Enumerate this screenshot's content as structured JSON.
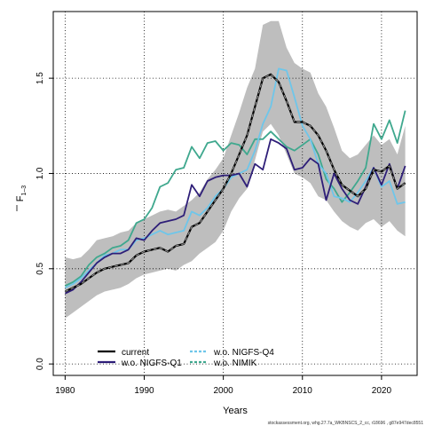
{
  "chart_data": {
    "type": "line",
    "xlabel": "Years",
    "ylabel": "F",
    "ylabel_subscript": "1–3",
    "xlim": [
      1978.5,
      2024.5
    ],
    "ylim": [
      -0.06,
      1.85
    ],
    "xticks": [
      1980,
      1990,
      2000,
      2010,
      2020
    ],
    "yticks": [
      0.0,
      0.5,
      1.0,
      1.5
    ],
    "ytick_labels": [
      "0.0",
      "0.5",
      "1.0",
      "1.5"
    ],
    "grid": true,
    "legend_position": "bottom-left",
    "x": [
      1980,
      1981,
      1982,
      1983,
      1984,
      1985,
      1986,
      1987,
      1988,
      1989,
      1990,
      1991,
      1992,
      1993,
      1994,
      1995,
      1996,
      1997,
      1998,
      1999,
      2000,
      2001,
      2002,
      2003,
      2004,
      2005,
      2006,
      2007,
      2008,
      2009,
      2010,
      2011,
      2012,
      2013,
      2014,
      2015,
      2016,
      2017,
      2018,
      2019,
      2020,
      2021,
      2022,
      2023
    ],
    "confidence_band": {
      "color": "#bebebe",
      "lower": [
        0.24,
        0.27,
        0.3,
        0.33,
        0.36,
        0.38,
        0.39,
        0.4,
        0.42,
        0.45,
        0.47,
        0.48,
        0.49,
        0.5,
        0.49,
        0.52,
        0.54,
        0.58,
        0.61,
        0.64,
        0.7,
        0.8,
        0.87,
        0.92,
        1.07,
        1.22,
        1.26,
        1.2,
        1.1,
        1.0,
        0.98,
        0.95,
        0.88,
        0.86,
        0.8,
        0.75,
        0.72,
        0.7,
        0.74,
        0.76,
        0.72,
        0.75,
        0.7,
        0.67
      ],
      "upper": [
        0.56,
        0.55,
        0.56,
        0.6,
        0.65,
        0.66,
        0.67,
        0.69,
        0.7,
        0.74,
        0.76,
        0.78,
        0.8,
        0.81,
        0.8,
        0.83,
        0.86,
        0.9,
        0.97,
        1.02,
        1.08,
        1.2,
        1.32,
        1.45,
        1.55,
        1.78,
        1.8,
        1.8,
        1.66,
        1.58,
        1.55,
        1.53,
        1.42,
        1.35,
        1.24,
        1.12,
        1.08,
        1.1,
        1.15,
        1.2,
        1.15,
        1.18,
        1.1,
        1.25
      ]
    },
    "series": [
      {
        "name": "current",
        "color": "#000000",
        "dash": "solid",
        "width": 2.2,
        "values": [
          0.38,
          0.4,
          0.42,
          0.45,
          0.48,
          0.5,
          0.51,
          0.52,
          0.53,
          0.57,
          0.59,
          0.6,
          0.61,
          0.59,
          0.62,
          0.63,
          0.72,
          0.74,
          0.8,
          0.86,
          0.92,
          1.0,
          1.1,
          1.2,
          1.35,
          1.5,
          1.52,
          1.48,
          1.38,
          1.27,
          1.27,
          1.25,
          1.2,
          1.12,
          1.02,
          0.94,
          0.91,
          0.88,
          0.92,
          1.02,
          1.01,
          1.04,
          0.92,
          0.95
        ]
      },
      {
        "name": "w.o. NIGFS-Q1",
        "color": "#2e1e78",
        "dash": "solid",
        "width": 1.8,
        "values": [
          0.37,
          0.39,
          0.43,
          0.48,
          0.53,
          0.56,
          0.58,
          0.58,
          0.6,
          0.66,
          0.65,
          0.7,
          0.74,
          0.75,
          0.76,
          0.78,
          0.94,
          0.88,
          0.96,
          0.98,
          0.99,
          0.99,
          1.0,
          0.93,
          1.05,
          1.02,
          1.18,
          1.16,
          1.13,
          1.02,
          1.03,
          1.08,
          1.05,
          0.86,
          1.0,
          0.92,
          0.86,
          0.84,
          0.93,
          1.03,
          0.94,
          1.05,
          0.92,
          1.04
        ]
      },
      {
        "name": "w.o. NIGFS-Q4",
        "color": "#6ec6ea",
        "dash": "dashed",
        "width": 1.8,
        "values": [
          0.4,
          0.42,
          0.45,
          0.49,
          0.53,
          0.57,
          0.58,
          0.6,
          0.6,
          0.65,
          0.66,
          0.68,
          0.7,
          0.68,
          0.69,
          0.7,
          0.8,
          0.78,
          0.82,
          0.88,
          0.92,
          0.98,
          1.0,
          1.02,
          1.12,
          1.26,
          1.35,
          1.55,
          1.54,
          1.4,
          1.25,
          1.18,
          1.05,
          1.0,
          0.88,
          0.87,
          0.85,
          0.9,
          0.96,
          1.03,
          0.93,
          0.96,
          0.84,
          0.85
        ]
      },
      {
        "name": "w.o. NIMIK",
        "color": "#3fa88e",
        "dash": "dashed",
        "width": 1.8,
        "values": [
          0.41,
          0.43,
          0.46,
          0.52,
          0.56,
          0.58,
          0.61,
          0.62,
          0.65,
          0.74,
          0.76,
          0.82,
          0.93,
          0.95,
          1.02,
          1.03,
          1.14,
          1.08,
          1.16,
          1.17,
          1.12,
          1.16,
          1.15,
          1.1,
          1.18,
          1.18,
          1.22,
          1.18,
          1.14,
          1.12,
          1.15,
          1.18,
          1.1,
          0.97,
          0.92,
          0.85,
          0.9,
          0.96,
          1.03,
          1.26,
          1.18,
          1.28,
          1.16,
          1.33
        ]
      }
    ]
  },
  "footer": "stockassessment.org, whg.27.7a_WKBNSCS_2_cc, r18696 , g87e947dec8551"
}
